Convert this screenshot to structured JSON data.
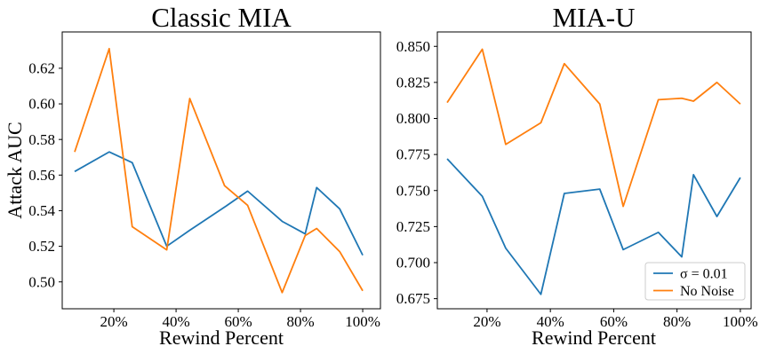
{
  "figure": {
    "background": "#ffffff",
    "axis_color": "#000000",
    "legend_border_color": "#cccccc",
    "series_colors": {
      "sigma_001": "#1f77b4",
      "no_noise": "#ff7f0e"
    }
  },
  "chart_data": [
    {
      "type": "line",
      "title": "Classic MIA",
      "xlabel": "Rewind Percent",
      "ylabel": "Attack AUC",
      "grid": false,
      "x": [
        7.4,
        18.5,
        25.9,
        37.0,
        44.4,
        55.6,
        63.0,
        74.1,
        81.5,
        85.2,
        92.6,
        100.0
      ],
      "xlim": [
        3.4,
        105.7
      ],
      "ylim": [
        0.4849,
        0.6404
      ],
      "xticks": [
        20,
        40,
        60,
        80,
        100
      ],
      "xtick_labels": [
        "20%",
        "40%",
        "60%",
        "80%",
        "100%"
      ],
      "yticks": [
        0.5,
        0.52,
        0.54,
        0.56,
        0.58,
        0.6,
        0.62
      ],
      "ytick_labels": [
        "0.50",
        "0.52",
        "0.54",
        "0.56",
        "0.58",
        "0.60",
        "0.62"
      ],
      "series": [
        {
          "name": "σ = 0.01",
          "color": "#1f77b4",
          "values": [
            0.562,
            0.573,
            0.567,
            0.52,
            0.529,
            0.542,
            0.551,
            0.534,
            0.527,
            0.553,
            0.541,
            0.515
          ]
        },
        {
          "name": "No Noise",
          "color": "#ff7f0e",
          "values": [
            0.573,
            0.631,
            0.531,
            0.518,
            0.603,
            0.554,
            0.543,
            0.494,
            0.526,
            0.53,
            0.517,
            0.495
          ]
        }
      ]
    },
    {
      "type": "line",
      "title": "MIA-U",
      "xlabel": "Rewind Percent",
      "ylabel": "",
      "grid": false,
      "x": [
        7.4,
        18.5,
        25.9,
        37.0,
        44.4,
        55.6,
        63.0,
        74.1,
        81.5,
        85.2,
        92.6,
        100.0
      ],
      "xlim": [
        4.3,
        103.4
      ],
      "ylim": [
        0.668,
        0.86
      ],
      "xticks": [
        20,
        40,
        60,
        80,
        100
      ],
      "xtick_labels": [
        "20%",
        "40%",
        "60%",
        "80%",
        "100%"
      ],
      "yticks": [
        0.675,
        0.7,
        0.725,
        0.75,
        0.775,
        0.8,
        0.825,
        0.85
      ],
      "ytick_labels": [
        "0.675",
        "0.700",
        "0.725",
        "0.750",
        "0.775",
        "0.800",
        "0.825",
        "0.850"
      ],
      "legend": {
        "position": "lower right"
      },
      "series": [
        {
          "name": "σ = 0.01",
          "color": "#1f77b4",
          "values": [
            0.772,
            0.746,
            0.71,
            0.678,
            0.748,
            0.751,
            0.709,
            0.721,
            0.704,
            0.761,
            0.732,
            0.759
          ]
        },
        {
          "name": "No Noise",
          "color": "#ff7f0e",
          "values": [
            0.811,
            0.848,
            0.782,
            0.797,
            0.838,
            0.81,
            0.739,
            0.813,
            0.814,
            0.812,
            0.825,
            0.81
          ]
        }
      ]
    }
  ]
}
